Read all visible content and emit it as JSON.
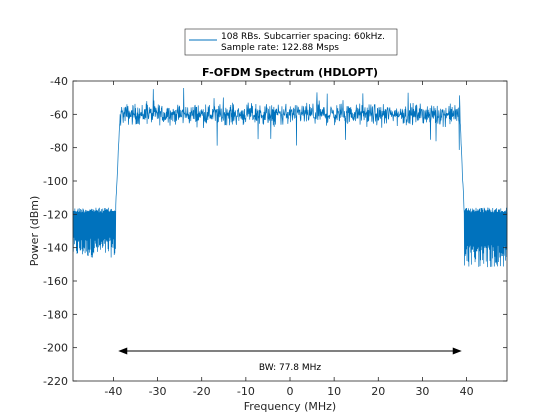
{
  "chart_data": {
    "type": "line",
    "title": "F-OFDM Spectrum (HDLOPT)",
    "xlabel": "Frequency (MHz)",
    "ylabel": "Power (dBm)",
    "xlim": [
      -49.15,
      49.15
    ],
    "ylim": [
      -220,
      -40
    ],
    "xticks": [
      -40,
      -30,
      -20,
      -10,
      0,
      10,
      20,
      30,
      40
    ],
    "yticks": [
      -220,
      -200,
      -180,
      -160,
      -140,
      -120,
      -100,
      -80,
      -60,
      -40
    ],
    "xtick_labels": [
      "-40",
      "-30",
      "-20",
      "-10",
      "0",
      "10",
      "20",
      "30",
      "40"
    ],
    "ytick_labels": [
      "-220",
      "-200",
      "-180",
      "-160",
      "-140",
      "-120",
      "-100",
      "-80",
      "-60",
      "-40"
    ],
    "grid": false,
    "legend": {
      "placement": "top-center (outside)",
      "entries": [
        "108 RBs. Subcarrier spacing: 60kHz.",
        "Sample rate: 122.88 Msps"
      ]
    },
    "series": [
      {
        "name": "108 RBs. Subcarrier spacing: 60kHz.",
        "color": "#0072BD",
        "profile": {
          "left_floor": {
            "x": [
              -49.15,
              -39.5
            ],
            "low": -146,
            "high": -116
          },
          "left_edge": {
            "x": [
              -39.5,
              -38.5
            ],
            "y": [
              -116,
              -62
            ]
          },
          "passband": {
            "x": [
              -38.5,
              38.5
            ],
            "mean": -60,
            "min": -83,
            "max": -43
          },
          "right_edge": {
            "x": [
              38.5,
              39.5
            ],
            "y": [
              -62,
              -122
            ]
          },
          "right_floor": {
            "x": [
              39.5,
              49.15
            ],
            "low": -152,
            "high": -116
          }
        }
      }
    ],
    "annotations": [
      {
        "text": "BW: 77.8 MHz",
        "arrow_x": [
          -38.9,
          38.9
        ],
        "y": -202
      }
    ]
  }
}
